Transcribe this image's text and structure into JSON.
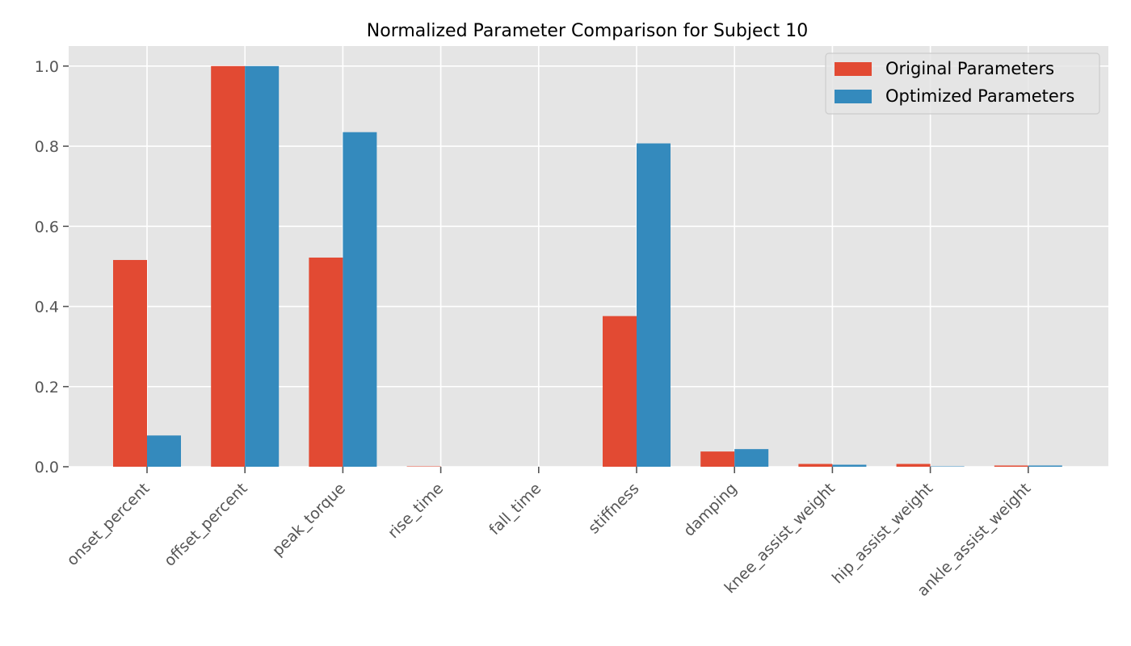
{
  "chart_data": {
    "type": "bar",
    "title": "Normalized Parameter Comparison for Subject 10",
    "xlabel": "",
    "ylabel": "",
    "categories": [
      "onset_percent",
      "offset_percent",
      "peak_torque",
      "rise_time",
      "fall_time",
      "stiffness",
      "damping",
      "knee_assist_weight",
      "hip_assist_weight",
      "ankle_assist_weight"
    ],
    "series": [
      {
        "name": "Original Parameters",
        "color": "#E24A33",
        "values": [
          0.516,
          1.0,
          0.522,
          0.001,
          0.0,
          0.376,
          0.038,
          0.007,
          0.007,
          0.003
        ]
      },
      {
        "name": "Optimized Parameters",
        "color": "#348ABD",
        "values": [
          0.078,
          1.0,
          0.835,
          0.0,
          0.0,
          0.807,
          0.044,
          0.005,
          0.001,
          0.003
        ]
      }
    ],
    "ylim": [
      0,
      1.05
    ],
    "yticks": [
      "0.0",
      "0.2",
      "0.4",
      "0.6",
      "0.8",
      "1.0"
    ],
    "grid": true,
    "legend_position": "top-right",
    "plot_background": "#E5E5E5"
  }
}
